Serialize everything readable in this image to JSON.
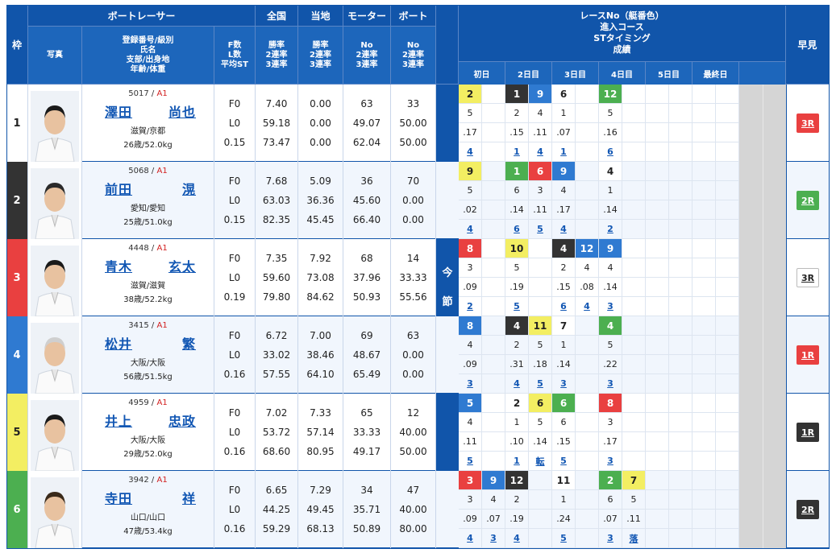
{
  "headers": {
    "waku": "枠",
    "boat_racer": "ボートレーサー",
    "photo": "写真",
    "info": [
      "登録番号/級別",
      "氏名",
      "支部/出身地",
      "年齢/体重"
    ],
    "fl": [
      "F数",
      "L数",
      "平均ST"
    ],
    "zenkoku": "全国",
    "touchi": "当地",
    "motor": "モーター",
    "boat": "ボート",
    "rates": [
      "勝率",
      "2連率",
      "3連率"
    ],
    "no_rates": [
      "No",
      "2連率",
      "3連率"
    ],
    "race_info": [
      "レースNo（艇番色）",
      "進入コース",
      "STタイミング",
      "成績"
    ],
    "days": [
      "初日",
      "2日目",
      "3日目",
      "4日目",
      "5日目",
      "最終日"
    ],
    "hayami": "早見",
    "konsetsu": [
      "今",
      "節",
      "成",
      "績"
    ]
  },
  "colors": {
    "1": "#ffffff",
    "2": "#333333",
    "3": "#e94040",
    "4": "#2f7ad1",
    "5": "#f3ee62",
    "6": "#4caf50"
  },
  "racers": [
    {
      "waku": "1",
      "reg": "5017",
      "cls": "A1",
      "name": [
        "澤田",
        "尚也"
      ],
      "branch": "滋賀/京都",
      "age": "26歳/52.0kg",
      "fl": [
        "F0",
        "L0",
        "0.15"
      ],
      "zenkoku": [
        "7.40",
        "59.18",
        "73.47"
      ],
      "touchi": [
        "0.00",
        "0.00",
        "0.00"
      ],
      "motor": [
        "63",
        "49.07",
        "62.04"
      ],
      "boat": [
        "33",
        "50.00",
        "50.00"
      ],
      "races": [
        {
          "c": 0,
          "no": "2",
          "w": 5,
          "course": "5",
          "st": ".17",
          "res": "4"
        },
        {
          "c": 2,
          "no": "1",
          "w": 2,
          "course": "2",
          "st": ".15",
          "res": "1"
        },
        {
          "c": 3,
          "no": "9",
          "w": 4,
          "course": "4",
          "st": ".11",
          "res": "4"
        },
        {
          "c": 4,
          "no": "6",
          "w": 1,
          "course": "1",
          "st": ".07",
          "res": "1"
        },
        {
          "c": 6,
          "no": "12",
          "w": 6,
          "course": "5",
          "st": ".16",
          "res": "6"
        }
      ],
      "hayami": "3R",
      "hw": 3
    },
    {
      "waku": "2",
      "reg": "5068",
      "cls": "A1",
      "name": [
        "前田",
        "滉"
      ],
      "branch": "愛知/愛知",
      "age": "25歳/51.0kg",
      "fl": [
        "F0",
        "L0",
        "0.15"
      ],
      "zenkoku": [
        "7.68",
        "63.03",
        "82.35"
      ],
      "touchi": [
        "5.09",
        "36.36",
        "45.45"
      ],
      "motor": [
        "36",
        "45.60",
        "66.40"
      ],
      "boat": [
        "70",
        "0.00",
        "0.00"
      ],
      "races": [
        {
          "c": 0,
          "no": "9",
          "w": 5,
          "course": "5",
          "st": ".02",
          "res": "4"
        },
        {
          "c": 2,
          "no": "1",
          "w": 6,
          "course": "6",
          "st": ".14",
          "res": "6"
        },
        {
          "c": 3,
          "no": "6",
          "w": 3,
          "course": "3",
          "st": ".11",
          "res": "5"
        },
        {
          "c": 4,
          "no": "9",
          "w": 4,
          "course": "4",
          "st": ".17",
          "res": "4"
        },
        {
          "c": 6,
          "no": "4",
          "w": 1,
          "course": "1",
          "st": ".14",
          "res": "2"
        }
      ],
      "hayami": "2R",
      "hw": 6
    },
    {
      "waku": "3",
      "reg": "4448",
      "cls": "A1",
      "name": [
        "青木",
        "玄太"
      ],
      "branch": "滋賀/滋賀",
      "age": "38歳/52.2kg",
      "fl": [
        "F0",
        "L0",
        "0.19"
      ],
      "zenkoku": [
        "7.35",
        "59.60",
        "79.80"
      ],
      "touchi": [
        "7.92",
        "73.08",
        "84.62"
      ],
      "motor": [
        "68",
        "37.96",
        "50.93"
      ],
      "boat": [
        "14",
        "33.33",
        "55.56"
      ],
      "races": [
        {
          "c": 0,
          "no": "8",
          "w": 3,
          "course": "3",
          "st": ".09",
          "res": "2"
        },
        {
          "c": 2,
          "no": "10",
          "w": 5,
          "course": "5",
          "st": ".19",
          "res": "5"
        },
        {
          "c": 4,
          "no": "4",
          "w": 2,
          "course": "2",
          "st": ".15",
          "res": "6"
        },
        {
          "c": 5,
          "no": "12",
          "w": 4,
          "course": "4",
          "st": ".08",
          "res": "4"
        },
        {
          "c": 6,
          "no": "9",
          "w": 4,
          "course": "4",
          "st": ".14",
          "res": "3"
        }
      ],
      "hayami": "3R",
      "hw": 1
    },
    {
      "waku": "4",
      "reg": "3415",
      "cls": "A1",
      "name": [
        "松井",
        "繁"
      ],
      "branch": "大阪/大阪",
      "age": "56歳/51.5kg",
      "fl": [
        "F0",
        "L0",
        "0.16"
      ],
      "zenkoku": [
        "6.72",
        "33.02",
        "57.55"
      ],
      "touchi": [
        "7.00",
        "38.46",
        "64.10"
      ],
      "motor": [
        "69",
        "48.67",
        "65.49"
      ],
      "boat": [
        "63",
        "0.00",
        "0.00"
      ],
      "races": [
        {
          "c": 0,
          "no": "8",
          "w": 4,
          "course": "4",
          "st": ".09",
          "res": "3"
        },
        {
          "c": 2,
          "no": "4",
          "w": 2,
          "course": "2",
          "st": ".31",
          "res": "4"
        },
        {
          "c": 3,
          "no": "11",
          "w": 5,
          "course": "5",
          "st": ".18",
          "res": "5"
        },
        {
          "c": 4,
          "no": "7",
          "w": 1,
          "course": "1",
          "st": ".14",
          "res": "3"
        },
        {
          "c": 6,
          "no": "4",
          "w": 6,
          "course": "5",
          "st": ".22",
          "res": "3"
        }
      ],
      "hayami": "1R",
      "hw": 3
    },
    {
      "waku": "5",
      "reg": "4959",
      "cls": "A1",
      "name": [
        "井上",
        "忠政"
      ],
      "branch": "大阪/大阪",
      "age": "29歳/52.0kg",
      "fl": [
        "F0",
        "L0",
        "0.16"
      ],
      "zenkoku": [
        "7.02",
        "53.72",
        "68.60"
      ],
      "touchi": [
        "7.33",
        "57.14",
        "80.95"
      ],
      "motor": [
        "65",
        "33.33",
        "49.17"
      ],
      "boat": [
        "12",
        "40.00",
        "50.00"
      ],
      "races": [
        {
          "c": 0,
          "no": "5",
          "w": 4,
          "course": "4",
          "st": ".11",
          "res": "5"
        },
        {
          "c": 2,
          "no": "2",
          "w": 1,
          "course": "1",
          "st": ".10",
          "res": "1"
        },
        {
          "c": 3,
          "no": "6",
          "w": 5,
          "course": "5",
          "st": ".14",
          "res": "転"
        },
        {
          "c": 4,
          "no": "6",
          "w": 6,
          "course": "6",
          "st": ".15",
          "res": "5"
        },
        {
          "c": 6,
          "no": "8",
          "w": 3,
          "course": "3",
          "st": ".17",
          "res": "3"
        }
      ],
      "hayami": "1R",
      "hw": 2
    },
    {
      "waku": "6",
      "reg": "3942",
      "cls": "A1",
      "name": [
        "寺田",
        "祥"
      ],
      "branch": "山口/山口",
      "age": "47歳/53.4kg",
      "fl": [
        "F0",
        "L0",
        "0.16"
      ],
      "zenkoku": [
        "6.65",
        "44.25",
        "59.29"
      ],
      "touchi": [
        "7.29",
        "49.45",
        "68.13"
      ],
      "motor": [
        "34",
        "35.71",
        "50.89"
      ],
      "boat": [
        "47",
        "40.00",
        "80.00"
      ],
      "races": [
        {
          "c": 0,
          "no": "3",
          "w": 3,
          "course": "3",
          "st": ".09",
          "res": "4"
        },
        {
          "c": 1,
          "no": "9",
          "w": 4,
          "course": "4",
          "st": ".07",
          "res": "3"
        },
        {
          "c": 2,
          "no": "12",
          "w": 2,
          "course": "2",
          "st": ".19",
          "res": "4"
        },
        {
          "c": 4,
          "no": "11",
          "w": 1,
          "course": "1",
          "st": ".24",
          "res": "5"
        },
        {
          "c": 6,
          "no": "2",
          "w": 6,
          "course": "6",
          "st": ".07",
          "res": "3"
        },
        {
          "c": 7,
          "no": "7",
          "w": 5,
          "course": "5",
          "st": ".11",
          "res": "落"
        }
      ],
      "hayami": "2R",
      "hw": 2
    }
  ]
}
